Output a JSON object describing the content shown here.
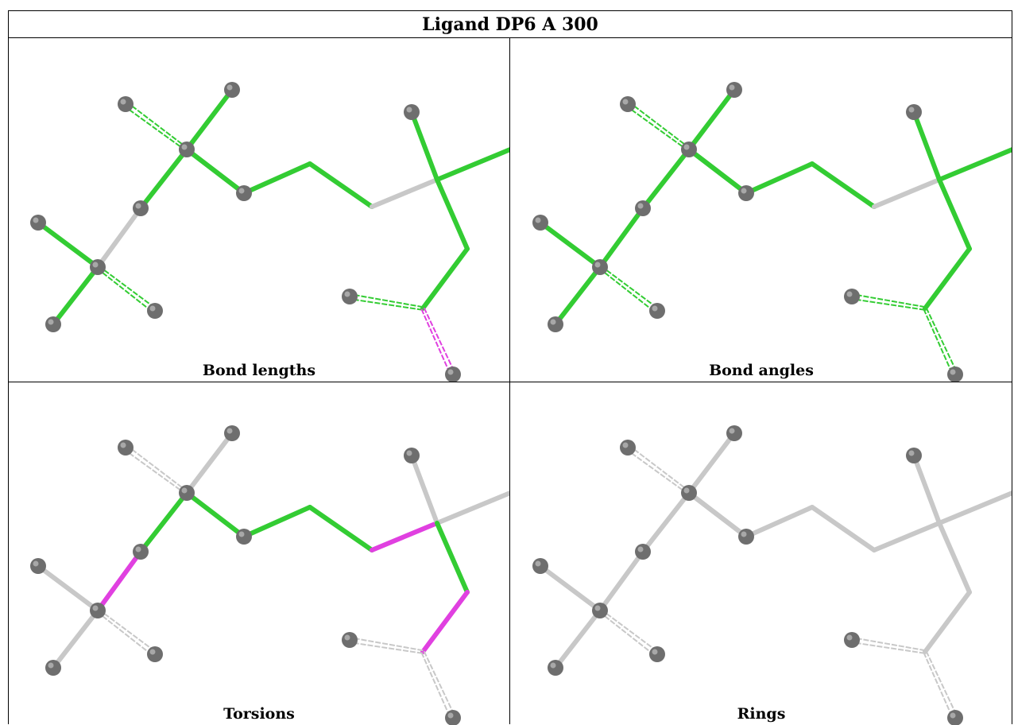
{
  "title": "Ligand DP6 A 300",
  "panels": [
    {
      "caption": "Bond lengths",
      "bond_colors": {
        "b1": "green",
        "b2": "green-dash",
        "b3": "green",
        "b4": "green",
        "b5": "grey",
        "b6": "green",
        "b7": "green",
        "b8": "green-dash",
        "b9": "green",
        "b10": "green",
        "b11": "green",
        "b12": "grey",
        "b13": "green",
        "b14": "green",
        "b15": "green",
        "b16": "green",
        "b17": "green-dash",
        "b18": "magenta-dash"
      }
    },
    {
      "caption": "Bond angles",
      "bond_colors": {
        "b1": "green",
        "b2": "green-dash",
        "b3": "green",
        "b4": "green",
        "b5": "green",
        "b6": "green",
        "b7": "green",
        "b8": "green-dash",
        "b9": "green",
        "b10": "green",
        "b11": "green",
        "b12": "grey",
        "b13": "green",
        "b14": "green",
        "b15": "green",
        "b16": "green",
        "b17": "green-dash",
        "b18": "green-dash"
      }
    },
    {
      "caption": "Torsions",
      "bond_colors": {
        "b1": "grey",
        "b2": "grey-dash",
        "b3": "grey",
        "b4": "green",
        "b5": "magenta",
        "b6": "grey",
        "b7": "grey",
        "b8": "grey-dash",
        "b9": "green",
        "b10": "green",
        "b11": "green",
        "b12": "magenta",
        "b13": "grey",
        "b14": "grey",
        "b15": "green",
        "b16": "magenta",
        "b17": "grey-dash",
        "b18": "grey-dash"
      }
    },
    {
      "caption": "Rings",
      "bond_colors": {
        "b1": "grey",
        "b2": "grey-dash",
        "b3": "grey",
        "b4": "grey",
        "b5": "grey",
        "b6": "grey",
        "b7": "grey",
        "b8": "grey-dash",
        "b9": "grey",
        "b10": "grey",
        "b11": "grey",
        "b12": "grey",
        "b13": "grey",
        "b14": "grey",
        "b15": "grey",
        "b16": "grey",
        "b17": "grey-dash",
        "b18": "grey-dash"
      }
    }
  ],
  "colors": {
    "green": "#33cc33",
    "grey": "#c8c8c8",
    "magenta": "#e040e0",
    "atom": "#6e6e6e",
    "atom_highlight": "#a8a8a8"
  }
}
